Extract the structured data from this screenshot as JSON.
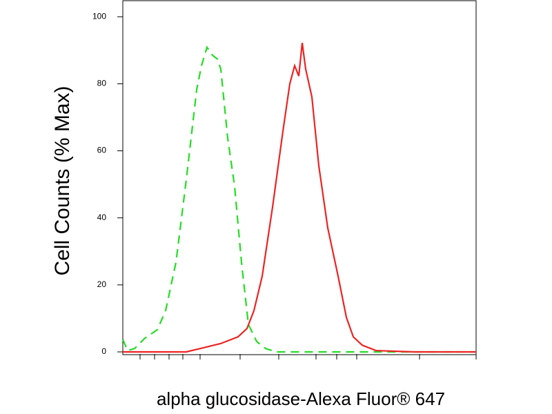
{
  "chart_data": {
    "type": "line",
    "xlabel": "alpha glucosidase-Alexa Fluor® 647",
    "ylabel": "Cell Counts (% Max)",
    "xlim": [
      0,
      1024
    ],
    "ylim": [
      0,
      105
    ],
    "xticks": [
      50,
      92,
      134,
      174,
      224,
      340,
      452,
      560,
      620,
      678,
      860,
      1024
    ],
    "yticks": [
      0,
      20,
      40,
      60,
      80,
      100
    ],
    "series": [
      {
        "color": "#22dd22",
        "dash": true,
        "x": [
          0,
          14,
          34,
          64,
          100,
          124,
          154,
          184,
          214,
          228,
          244,
          260,
          274,
          284,
          304,
          324,
          344,
          364,
          388,
          414,
          444,
          1024
        ],
        "values": [
          3.7,
          0.4,
          1.0,
          4.1,
          6.6,
          12.3,
          26.7,
          51.4,
          78.2,
          85.4,
          90.9,
          88.5,
          87.4,
          84.4,
          63.8,
          49.4,
          26.7,
          8.2,
          3.1,
          1.0,
          0,
          0
        ]
      },
      {
        "color": "#ee2222",
        "dash": false,
        "x": [
          0,
          184,
          224,
          284,
          334,
          360,
          380,
          404,
          434,
          464,
          484,
          498,
          510,
          520,
          530,
          548,
          568,
          594,
          624,
          648,
          668,
          694,
          734,
          844,
          1024
        ],
        "values": [
          0,
          0,
          1.0,
          2.5,
          4.5,
          7.0,
          12.3,
          22.6,
          43.2,
          65.8,
          80.0,
          85.4,
          82.3,
          92.2,
          84.4,
          76.1,
          55.6,
          37.0,
          22.6,
          10.3,
          4.5,
          2.0,
          0.4,
          0,
          0
        ]
      }
    ]
  }
}
